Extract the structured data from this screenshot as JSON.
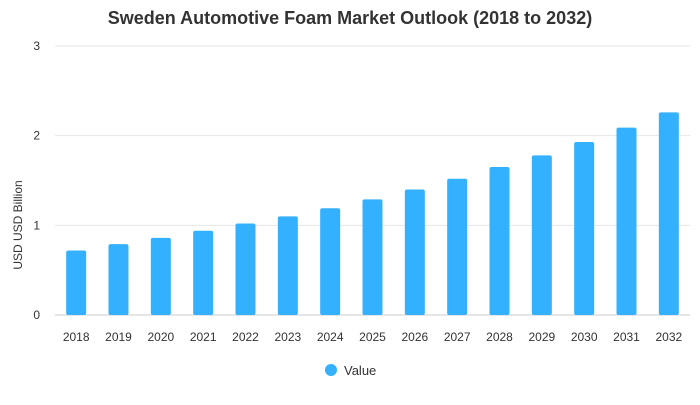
{
  "chart_data": {
    "type": "bar",
    "title": "Sweden Automotive Foam Market Outlook (2018 to 2032)",
    "ylabel": "USD USD Billion",
    "xlabel": "",
    "categories": [
      "2018",
      "2019",
      "2020",
      "2021",
      "2022",
      "2023",
      "2024",
      "2025",
      "2026",
      "2027",
      "2028",
      "2029",
      "2030",
      "2031",
      "2032"
    ],
    "series": [
      {
        "name": "Value",
        "values": [
          0.72,
          0.79,
          0.86,
          0.94,
          1.02,
          1.1,
          1.19,
          1.29,
          1.4,
          1.52,
          1.65,
          1.78,
          1.93,
          2.09,
          2.26
        ]
      }
    ],
    "ylim": [
      0,
      3
    ],
    "yticks": [
      "0",
      "1",
      "2",
      "3"
    ],
    "grid": true,
    "legend_position": "bottom-center",
    "colors": {
      "bar": "#33b1ff",
      "grid": "#e6e6e6",
      "axis_text": "#333333"
    }
  }
}
